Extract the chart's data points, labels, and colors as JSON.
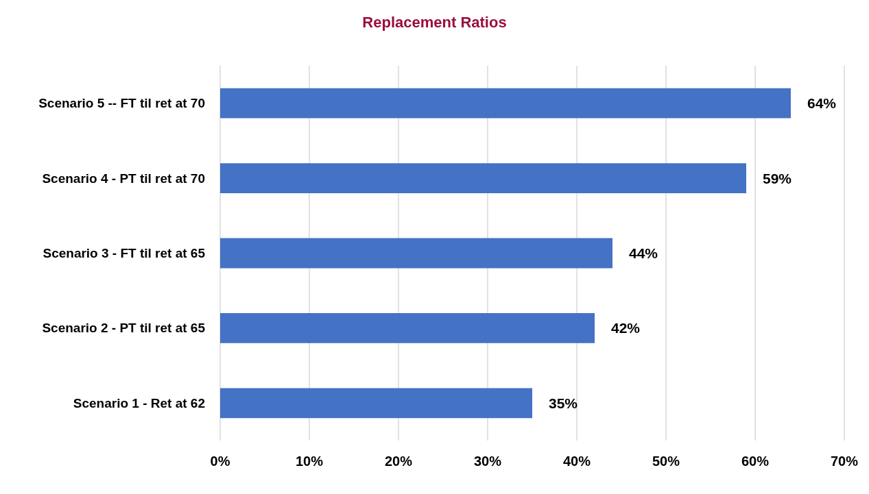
{
  "chart_data": {
    "type": "bar",
    "orientation": "horizontal",
    "title": "Replacement Ratios",
    "categories": [
      "Scenario 5 -- FT til ret at 70",
      "Scenario 4 - PT til ret at 70",
      "Scenario 3 - FT til ret at 65",
      "Scenario 2 - PT til ret at 65",
      "Scenario 1 - Ret at 62"
    ],
    "values": [
      64,
      59,
      44,
      42,
      35
    ],
    "value_labels": [
      "64%",
      "59%",
      "44%",
      "42%",
      "35%"
    ],
    "color": "#4472c4",
    "xlim": [
      0,
      70
    ],
    "xticks": [
      {
        "value": 0,
        "label": "0%"
      },
      {
        "value": 10,
        "label": "10%"
      },
      {
        "value": 20,
        "label": "20%"
      },
      {
        "value": 30,
        "label": "30%"
      },
      {
        "value": 40,
        "label": "40%"
      },
      {
        "value": 50,
        "label": "50%"
      },
      {
        "value": 60,
        "label": "60%"
      },
      {
        "value": 70,
        "label": "70%"
      }
    ],
    "grid": "x"
  }
}
